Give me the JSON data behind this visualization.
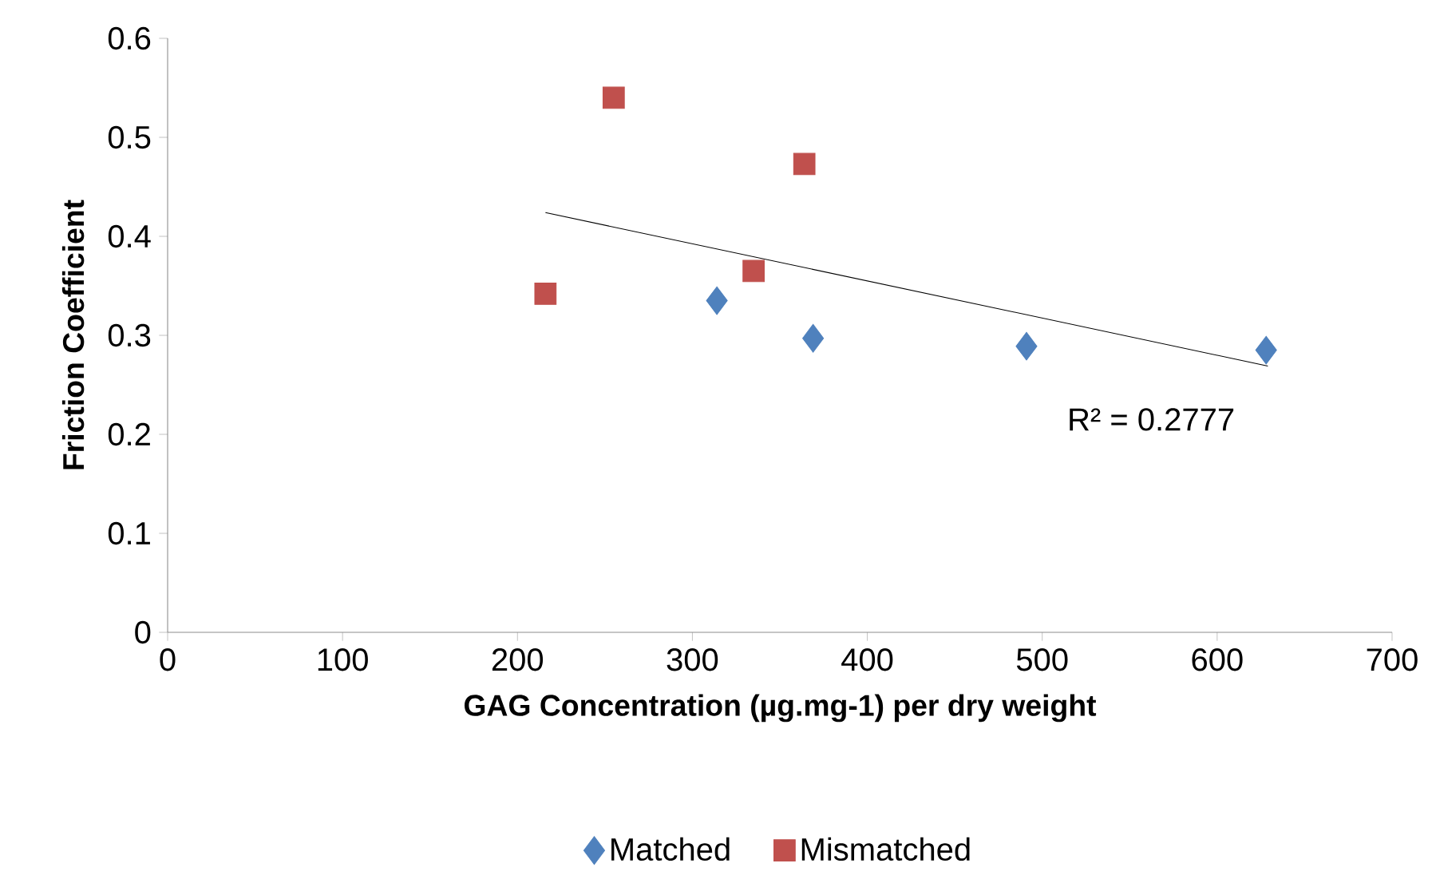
{
  "chart_data": {
    "type": "scatter",
    "xlabel": "GAG Concentration (µg.mg-1) per dry weight",
    "ylabel": "Friction Coefficient",
    "xlim": [
      0,
      700
    ],
    "xticks": [
      0,
      100,
      200,
      300,
      400,
      500,
      600,
      700
    ],
    "ylim": [
      0,
      0.6
    ],
    "yticks": [
      0,
      0.1,
      0.2,
      0.3,
      0.4,
      0.5,
      0.6
    ],
    "grid": false,
    "legend": "bottom",
    "series": [
      {
        "name": "Matched",
        "color": "#4f81bd",
        "marker": "diamond",
        "x": [
          314,
          369,
          491,
          628
        ],
        "values": [
          0.335,
          0.297,
          0.289,
          0.285
        ]
      },
      {
        "name": "Mismatched",
        "color": "#c0504d",
        "marker": "square",
        "x": [
          216,
          255,
          335,
          364
        ],
        "values": [
          0.342,
          0.54,
          0.365,
          0.473
        ]
      },
      {
        "type": "line",
        "color": "#000000",
        "marker": "none",
        "line_style": "solid",
        "x": [
          216,
          629
        ],
        "values": [
          0.424,
          0.269
        ]
      }
    ],
    "annotations": [
      "R² = 0.2777"
    ]
  }
}
